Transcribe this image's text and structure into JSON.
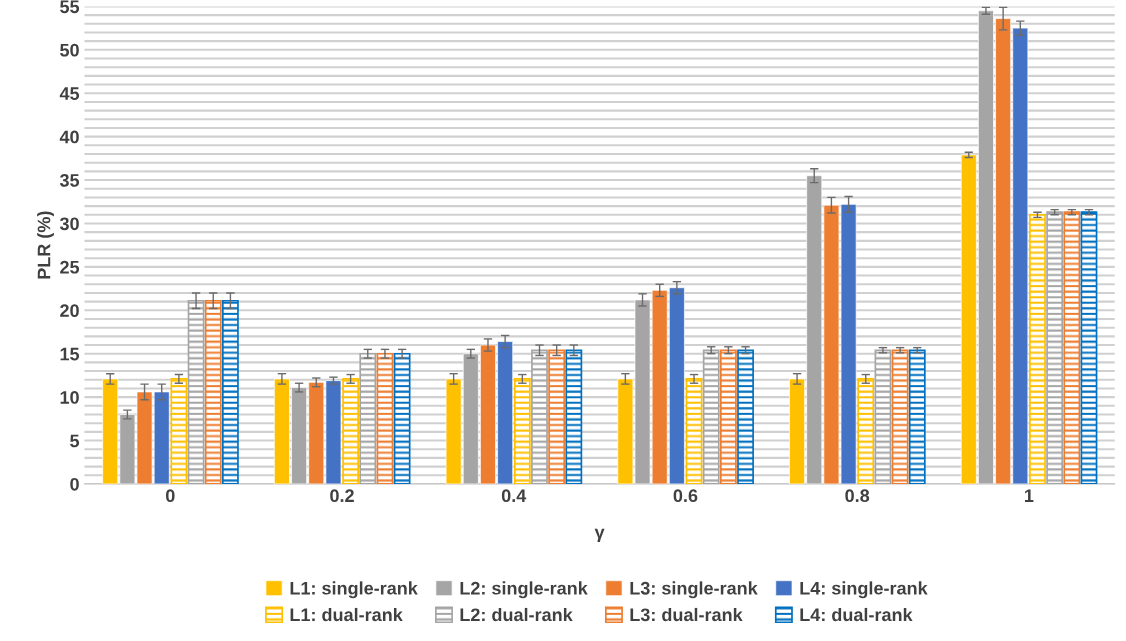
{
  "chart_data": {
    "type": "bar",
    "xlabel": "γ",
    "ylabel": "PLR (%)",
    "categories": [
      "0",
      "0.2",
      "0.4",
      "0.6",
      "0.8",
      "1"
    ],
    "ylim": [
      0,
      55
    ],
    "yticks": [
      0,
      {
        "value": 1,
        "label": null
      },
      {
        "value": 2,
        "label": null
      },
      {
        "value": 3,
        "label": null
      },
      {
        "value": 4,
        "label": null
      },
      5,
      {
        "value": 6,
        "label": null
      },
      {
        "value": 7,
        "label": null
      },
      {
        "value": 8,
        "label": null
      },
      {
        "value": 9,
        "label": null
      },
      10,
      {
        "value": 11,
        "label": null
      },
      {
        "value": 12,
        "label": null
      },
      {
        "value": 13,
        "label": null
      },
      {
        "value": 14,
        "label": null
      },
      15,
      {
        "value": 16,
        "label": null
      },
      {
        "value": 17,
        "label": null
      },
      {
        "value": 18,
        "label": null
      },
      {
        "value": 19,
        "label": null
      },
      20,
      {
        "value": 21,
        "label": null
      },
      {
        "value": 22,
        "label": null
      },
      {
        "value": 23,
        "label": null
      },
      {
        "value": 24,
        "label": null
      },
      25,
      {
        "value": 26,
        "label": null
      },
      {
        "value": 27,
        "label": null
      },
      {
        "value": 28,
        "label": null
      },
      {
        "value": 29,
        "label": null
      },
      30,
      {
        "value": 31,
        "label": null
      },
      {
        "value": 32,
        "label": null
      },
      {
        "value": 33,
        "label": null
      },
      {
        "value": 34,
        "label": null
      },
      35,
      {
        "value": 36,
        "label": null
      },
      {
        "value": 37,
        "label": null
      },
      {
        "value": 38,
        "label": null
      },
      {
        "value": 39,
        "label": null
      },
      40,
      {
        "value": 41,
        "label": null
      },
      {
        "value": 42,
        "label": null
      },
      {
        "value": 43,
        "label": null
      },
      {
        "value": 44,
        "label": null
      },
      45,
      {
        "value": 46,
        "label": null
      },
      {
        "value": 47,
        "label": null
      },
      {
        "value": 48,
        "label": null
      },
      {
        "value": 49,
        "label": null
      },
      50,
      {
        "value": 51,
        "label": null
      },
      {
        "value": 52,
        "label": null
      },
      {
        "value": 53,
        "label": null
      },
      {
        "value": 54,
        "label": null
      },
      55
    ],
    "grid": "y",
    "legend": "bottom",
    "series": [
      {
        "name": "L1: single-rank",
        "color": "#ffc000",
        "values": [
          12.1,
          12.1,
          12.1,
          12.1,
          12.1,
          37.9
        ],
        "errors": [
          0.6,
          0.6,
          0.6,
          0.6,
          0.6,
          0.3
        ]
      },
      {
        "name": "L2: single-rank",
        "color": "#a5a5a5",
        "values": [
          8.0,
          11.1,
          15.0,
          21.2,
          35.5,
          54.5
        ],
        "errors": [
          0.5,
          0.5,
          0.5,
          0.7,
          0.8,
          0.4
        ]
      },
      {
        "name": "L3: single-rank",
        "color": "#ed7d31",
        "values": [
          10.6,
          11.7,
          16.0,
          22.3,
          32.1,
          53.6
        ],
        "errors": [
          0.9,
          0.5,
          0.7,
          0.7,
          0.9,
          1.3
        ]
      },
      {
        "name": "L4: single-rank",
        "color": "#4472c4",
        "values": [
          10.6,
          11.9,
          16.4,
          22.6,
          32.2,
          52.5
        ],
        "errors": [
          0.9,
          0.4,
          0.7,
          0.7,
          0.9,
          0.8
        ]
      },
      {
        "name": "L1: dual-rank",
        "color": "#ffc000",
        "values": [
          12.1,
          12.1,
          12.1,
          12.1,
          12.1,
          31.0
        ],
        "errors": [
          0.5,
          0.5,
          0.5,
          0.5,
          0.5,
          0.3
        ]
      },
      {
        "name": "L2: dual-rank",
        "color": "#a5a5a5",
        "values": [
          21.1,
          15.0,
          15.4,
          15.4,
          15.4,
          31.3
        ],
        "errors": [
          0.9,
          0.5,
          0.6,
          0.4,
          0.3,
          0.3
        ]
      },
      {
        "name": "L3: dual-rank",
        "color": "#ed7d31",
        "values": [
          21.1,
          15.0,
          15.4,
          15.4,
          15.4,
          31.3
        ],
        "errors": [
          0.9,
          0.5,
          0.6,
          0.4,
          0.3,
          0.3
        ]
      },
      {
        "name": "L4: dual-rank",
        "color": "#0070c0",
        "values": [
          21.1,
          15.0,
          15.4,
          15.4,
          15.4,
          31.3
        ],
        "errors": [
          0.9,
          0.5,
          0.6,
          0.4,
          0.3,
          0.3
        ]
      }
    ]
  }
}
